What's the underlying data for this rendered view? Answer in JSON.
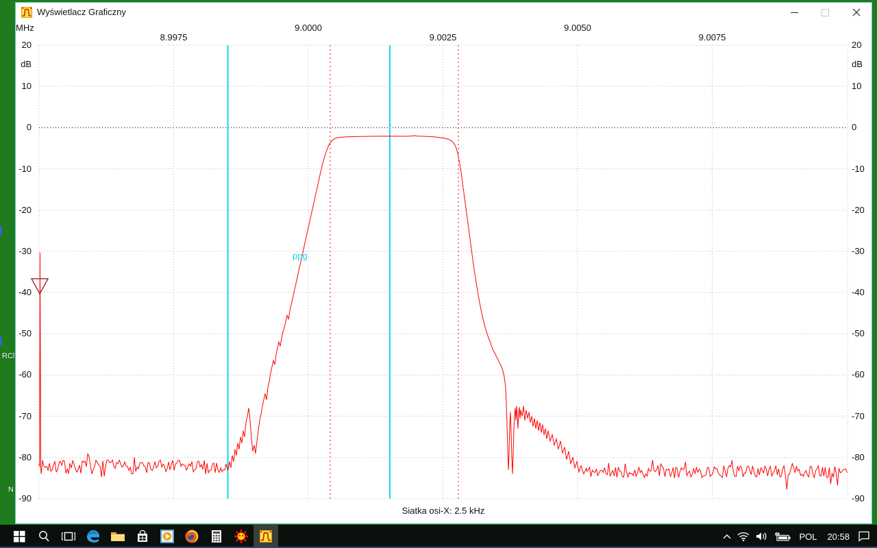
{
  "window": {
    "title": "Wyświetlacz Graficzny",
    "controls": {
      "minimize": "minimize",
      "maximize": "maximize-disabled",
      "close": "close"
    }
  },
  "desktop": {
    "bg_color": "#1e7b1e",
    "icon_label_left": "RCl",
    "icon_label_bottom": "N"
  },
  "status_text": "Siatka osi-X: 2.5 kHz",
  "taskbar": {
    "items": [
      "start",
      "search",
      "task-view",
      "edge-browser",
      "file-explorer",
      "store",
      "media-player",
      "firefox",
      "calculator",
      "sun-app",
      "graphic-display-app"
    ],
    "active_item": "graphic-display-app",
    "tray": {
      "language": "POL",
      "time": "20:58"
    }
  },
  "chart_data": {
    "type": "line",
    "title": "",
    "x_axis": {
      "unit": "MHz",
      "center_mhz": 9.0,
      "grid_step_khz": 2.5,
      "range_khz_offset": [
        -5.0,
        10.0
      ],
      "ticks": [
        {
          "offset_khz": -2.5,
          "label": "8.9975",
          "row": "lower"
        },
        {
          "offset_khz": 0.0,
          "label": "9.0000",
          "row": "upper"
        },
        {
          "offset_khz": 2.5,
          "label": "9.0025",
          "row": "lower"
        },
        {
          "offset_khz": 5.0,
          "label": "9.0050",
          "row": "upper"
        },
        {
          "offset_khz": 7.5,
          "label": "9.0075",
          "row": "lower"
        }
      ]
    },
    "y_axis": {
      "unit": "dB",
      "grid_step_db": 10,
      "range": [
        -90,
        20
      ],
      "ticks": [
        20,
        10,
        0,
        -10,
        -20,
        -30,
        -40,
        -50,
        -60,
        -70,
        -80,
        -90
      ],
      "zero_line_black": true
    },
    "markers": {
      "cyan_vlines_khz": [
        -1.495,
        1.514
      ],
      "red_dotted_vlines_khz": [
        0.407,
        2.786
      ],
      "text_label": {
        "text": "ppg",
        "offset_khz": -0.28,
        "db": -30.2,
        "color": "#12dbe2"
      },
      "triangle": {
        "offset_khz": -4.987,
        "tip_db": -40.3,
        "color": "#a03232"
      }
    },
    "trace": {
      "color": "#ff0000",
      "segments": [
        {
          "type": "line",
          "points": [
            [
              -5.0,
              -81.5
            ],
            [
              -4.99,
              -82.2
            ],
            [
              -4.982,
              -30.3
            ],
            [
              -4.968,
              -82.5
            ]
          ]
        },
        {
          "type": "noise",
          "from_khz": -4.96,
          "to_khz": -1.49,
          "mean_db": -82.3,
          "pp_db": 3.4,
          "seed": 7
        },
        {
          "type": "line",
          "points": [
            [
              -1.488,
              -83
            ],
            [
              -1.46,
              -81
            ],
            [
              -1.438,
              -82.5
            ],
            [
              -1.412,
              -79.5
            ],
            [
              -1.387,
              -81
            ],
            [
              -1.361,
              -78
            ],
            [
              -1.336,
              -79.5
            ],
            [
              -1.31,
              -76.5
            ],
            [
              -1.285,
              -78
            ],
            [
              -1.26,
              -75
            ],
            [
              -1.234,
              -76.5
            ],
            [
              -1.209,
              -73.5
            ],
            [
              -1.183,
              -75
            ],
            [
              -1.158,
              -71.5
            ],
            [
              -1.132,
              -70
            ],
            [
              -1.107,
              -68
            ],
            [
              -1.081,
              -71
            ],
            [
              -1.056,
              -75.5
            ],
            [
              -1.031,
              -78.5
            ],
            [
              -1.005,
              -77
            ],
            [
              -0.98,
              -79
            ],
            [
              -0.954,
              -76
            ],
            [
              -0.929,
              -73.5
            ],
            [
              -0.903,
              -71
            ],
            [
              -0.878,
              -69.5
            ],
            [
              -0.852,
              -67.5
            ],
            [
              -0.827,
              -66
            ],
            [
              -0.802,
              -64.5
            ],
            [
              -0.776,
              -66
            ],
            [
              -0.751,
              -63
            ],
            [
              -0.725,
              -61.5
            ],
            [
              -0.7,
              -59.5
            ],
            [
              -0.674,
              -58
            ],
            [
              -0.649,
              -56.5
            ],
            [
              -0.623,
              -57.5
            ],
            [
              -0.598,
              -55
            ],
            [
              -0.573,
              -53.5
            ],
            [
              -0.547,
              -52
            ],
            [
              -0.522,
              -53
            ],
            [
              -0.496,
              -51
            ],
            [
              -0.471,
              -49.5
            ],
            [
              -0.445,
              -48.5
            ],
            [
              -0.42,
              -47
            ],
            [
              -0.394,
              -45.5
            ],
            [
              -0.369,
              -46.5
            ],
            [
              -0.344,
              -44.5
            ],
            [
              -0.318,
              -43
            ],
            [
              -0.293,
              -41.5
            ],
            [
              -0.267,
              -40
            ],
            [
              -0.242,
              -38.5
            ],
            [
              -0.216,
              -37
            ],
            [
              -0.191,
              -35.5
            ],
            [
              -0.165,
              -34
            ],
            [
              -0.14,
              -32.5
            ],
            [
              -0.115,
              -31
            ],
            [
              -0.089,
              -29.5
            ],
            [
              -0.064,
              -28
            ],
            [
              -0.038,
              -26.5
            ],
            [
              -0.013,
              -25
            ],
            [
              0.013,
              -23.5
            ],
            [
              0.038,
              -22
            ],
            [
              0.064,
              -20.5
            ],
            [
              0.089,
              -19
            ],
            [
              0.115,
              -17.5
            ],
            [
              0.14,
              -16
            ],
            [
              0.165,
              -14.5
            ],
            [
              0.191,
              -13
            ],
            [
              0.216,
              -11.5
            ],
            [
              0.242,
              -10
            ],
            [
              0.267,
              -8.7
            ],
            [
              0.293,
              -7.5
            ],
            [
              0.318,
              -6.4
            ],
            [
              0.344,
              -5.4
            ],
            [
              0.369,
              -4.6
            ],
            [
              0.394,
              -3.9
            ],
            [
              0.433,
              -3.2
            ],
            [
              0.471,
              -2.8
            ],
            [
              0.522,
              -2.5
            ],
            [
              0.585,
              -2.35
            ],
            [
              0.674,
              -2.25
            ],
            [
              0.789,
              -2.2
            ],
            [
              0.954,
              -2.15
            ],
            [
              1.145,
              -2.1
            ],
            [
              1.336,
              -2.08
            ],
            [
              1.501,
              -2.05
            ],
            [
              1.654,
              -2.07
            ],
            [
              1.845,
              -2.1
            ],
            [
              1.972,
              -1.95
            ],
            [
              2.036,
              -2.05
            ],
            [
              2.163,
              -2.1
            ],
            [
              2.29,
              -2.2
            ],
            [
              2.392,
              -2.3
            ],
            [
              2.481,
              -2.45
            ],
            [
              2.545,
              -2.6
            ],
            [
              2.608,
              -2.85
            ],
            [
              2.646,
              -3.1
            ],
            [
              2.684,
              -3.5
            ],
            [
              2.723,
              -4.2
            ],
            [
              2.748,
              -5
            ],
            [
              2.774,
              -6.2
            ],
            [
              2.799,
              -7.8
            ],
            [
              2.824,
              -9.8
            ],
            [
              2.85,
              -12
            ],
            [
              2.875,
              -14.5
            ],
            [
              2.901,
              -17
            ],
            [
              2.926,
              -19.5
            ],
            [
              2.952,
              -22
            ],
            [
              2.977,
              -24.5
            ],
            [
              3.003,
              -27
            ],
            [
              3.028,
              -29.5
            ],
            [
              3.053,
              -32
            ],
            [
              3.079,
              -34.3
            ],
            [
              3.104,
              -36.5
            ],
            [
              3.13,
              -38.6
            ],
            [
              3.155,
              -40.6
            ],
            [
              3.181,
              -42.4
            ],
            [
              3.206,
              -44.1
            ],
            [
              3.231,
              -45.7
            ],
            [
              3.257,
              -47.1
            ],
            [
              3.282,
              -48.4
            ],
            [
              3.308,
              -49.5
            ],
            [
              3.333,
              -50.5
            ],
            [
              3.359,
              -51.4
            ],
            [
              3.384,
              -52.3
            ],
            [
              3.409,
              -53.2
            ],
            [
              3.435,
              -54
            ],
            [
              3.473,
              -55
            ],
            [
              3.511,
              -56
            ],
            [
              3.55,
              -57
            ],
            [
              3.588,
              -58
            ],
            [
              3.613,
              -59
            ],
            [
              3.639,
              -60.5
            ],
            [
              3.664,
              -63
            ],
            [
              3.677,
              -67
            ],
            [
              3.69,
              -72
            ],
            [
              3.702,
              -78
            ],
            [
              3.715,
              -83
            ],
            [
              3.728,
              -79
            ],
            [
              3.74,
              -72
            ],
            [
              3.753,
              -69
            ],
            [
              3.766,
              -74
            ],
            [
              3.779,
              -80
            ],
            [
              3.791,
              -84
            ],
            [
              3.804,
              -79
            ],
            [
              3.817,
              -73
            ],
            [
              3.83,
              -70
            ],
            [
              3.842,
              -68
            ],
            [
              3.855,
              -71
            ],
            [
              3.868,
              -67.5
            ],
            [
              3.88,
              -70
            ],
            [
              3.893,
              -73
            ],
            [
              3.906,
              -69
            ],
            [
              3.919,
              -67.8
            ],
            [
              3.931,
              -70.5
            ],
            [
              3.944,
              -68.5
            ],
            [
              3.969,
              -70
            ],
            [
              3.995,
              -67.5
            ],
            [
              4.02,
              -71
            ],
            [
              4.046,
              -68.5
            ],
            [
              4.071,
              -70.5
            ],
            [
              4.097,
              -69
            ],
            [
              4.122,
              -71.5
            ],
            [
              4.148,
              -70
            ],
            [
              4.173,
              -72.5
            ],
            [
              4.198,
              -70.5
            ],
            [
              4.224,
              -73
            ],
            [
              4.249,
              -71
            ],
            [
              4.275,
              -73.5
            ],
            [
              4.3,
              -71.5
            ],
            [
              4.326,
              -74
            ],
            [
              4.351,
              -72
            ],
            [
              4.377,
              -74.5
            ],
            [
              4.402,
              -73
            ],
            [
              4.427,
              -75.5
            ],
            [
              4.453,
              -73.5
            ],
            [
              4.491,
              -76
            ],
            [
              4.529,
              -74.5
            ],
            [
              4.567,
              -77
            ],
            [
              4.606,
              -75.5
            ],
            [
              4.644,
              -78
            ],
            [
              4.682,
              -76
            ],
            [
              4.72,
              -79
            ],
            [
              4.758,
              -77.5
            ],
            [
              4.796,
              -80.5
            ],
            [
              4.835,
              -78.5
            ],
            [
              4.873,
              -81.5
            ],
            [
              4.911,
              -80
            ],
            [
              4.949,
              -82.5
            ],
            [
              4.987,
              -81
            ],
            [
              5.025,
              -83.5
            ],
            [
              5.064,
              -82
            ],
            [
              5.115,
              -84
            ],
            [
              5.165,
              -82.5
            ]
          ]
        },
        {
          "type": "noise",
          "from_khz": 5.17,
          "to_khz": 10.01,
          "mean_db": -83.4,
          "pp_db": 3.0,
          "seed": 11
        }
      ]
    },
    "grid_note": "Siatka osi-X: 2.5 kHz",
    "colors": {
      "trace": "#ff0000",
      "grid": "#b4b4b4",
      "zero_line": "#000000",
      "cyan_marker": "#12dbe2",
      "red_marker": "#ff0000"
    }
  }
}
